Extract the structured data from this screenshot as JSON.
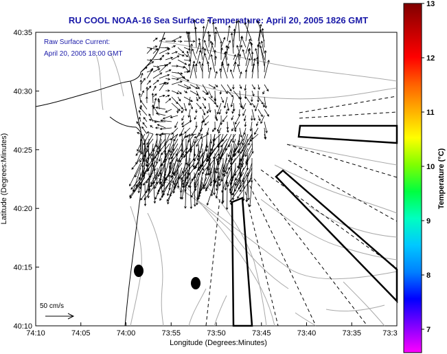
{
  "title": "RU COOL  NOAA-16  Sea Surface Temperature:  April 20, 2005 1826 GMT",
  "annotation": {
    "line1": "Raw Surface Current:",
    "line2": "April 20, 2005 18:00 GMT"
  },
  "scale_label": "50 cm/s",
  "x_axis": {
    "label": "Longitude (Degrees:Minutes)",
    "ticks": [
      "74:10",
      "74:05",
      "74:00",
      "73:55",
      "73:50",
      "73:45",
      "73:40",
      "73:35",
      "73:3"
    ]
  },
  "y_axis": {
    "label": "Latitude (Degrees:Minutes)",
    "ticks": [
      "40:35",
      "40:30",
      "40:25",
      "40:20",
      "40:15",
      "40:10"
    ]
  },
  "colorbar": {
    "label": "Temperature (°C)",
    "ticks": [
      "13",
      "12",
      "11",
      "10",
      "9",
      "8",
      "7"
    ],
    "colors": [
      "#ff00ff",
      "#8000ff",
      "#0000ff",
      "#0080ff",
      "#00c8ff",
      "#00ffc0",
      "#00ff40",
      "#80ff00",
      "#ffff00",
      "#ffb000",
      "#ff6000",
      "#ff0000",
      "#c00000",
      "#800000"
    ]
  },
  "colors": {
    "title": "#1a1aa8",
    "contour": "#a8a8a8",
    "coast": "#000000"
  }
}
